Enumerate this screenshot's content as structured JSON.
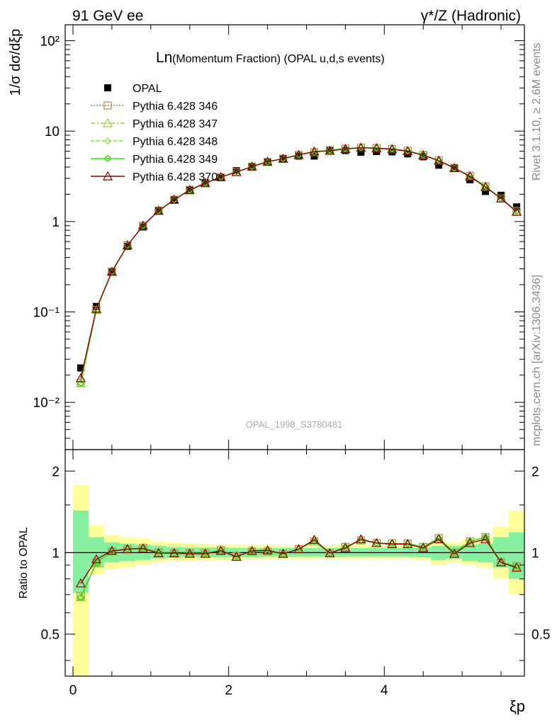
{
  "header": {
    "left": "91 GeV ee",
    "right": "γ*/Z (Hadronic)"
  },
  "side_texts": {
    "rivet": "Rivet 3.1.10, ≥ 2.6M events",
    "mcplots": "mcplots.cern.ch [arXiv:1306.3436]"
  },
  "colors": {
    "data": "#000000",
    "p346": "#b5844a",
    "p347": "#9acd32",
    "p348": "#7fe03a",
    "p349": "#33dd11",
    "p370": "#8b0000",
    "band_inner": "#87f0a0",
    "band_outer": "#ffff99"
  },
  "chart_data": [
    {
      "type": "line",
      "panel": "main",
      "title_main": "Ln",
      "title_rest": "(Momentum Fraction) (OPAL u,d,s events)",
      "watermark": "OPAL_1998_S3780481",
      "ylabel": "1/σ dσ/dξp",
      "yscale": "log",
      "ylim": [
        0.003,
        150
      ],
      "xlim": [
        -0.1,
        5.8
      ],
      "ytick_labels": [
        "10⁻²",
        "10⁻¹",
        "1",
        "10",
        "10²"
      ],
      "legend_position": "top-left",
      "x": [
        0.1,
        0.3,
        0.5,
        0.7,
        0.9,
        1.1,
        1.3,
        1.5,
        1.7,
        1.9,
        2.1,
        2.3,
        2.5,
        2.7,
        2.9,
        3.1,
        3.3,
        3.5,
        3.7,
        3.9,
        4.1,
        4.3,
        4.5,
        4.7,
        4.9,
        5.1,
        5.3,
        5.5,
        5.7
      ],
      "series": [
        {
          "name": "OPAL",
          "values": [
            0.024,
            0.115,
            0.275,
            0.53,
            0.87,
            1.32,
            1.75,
            2.25,
            2.68,
            3.05,
            3.65,
            4.0,
            4.5,
            5.0,
            5.3,
            5.3,
            6.05,
            6.1,
            5.85,
            5.95,
            5.9,
            5.6,
            5.2,
            4.2,
            3.95,
            2.9,
            2.15,
            1.95,
            1.45
          ]
        },
        {
          "name": "Pythia 6.428 346",
          "values": [
            0.0165,
            0.106,
            0.278,
            0.545,
            0.9,
            1.32,
            1.74,
            2.24,
            2.67,
            3.1,
            3.55,
            4.05,
            4.55,
            4.95,
            5.45,
            5.85,
            6.15,
            6.4,
            6.55,
            6.5,
            6.35,
            6.05,
            5.45,
            4.75,
            3.9,
            3.2,
            2.45,
            1.8,
            1.3
          ]
        },
        {
          "name": "Pythia 6.428 347",
          "values": [
            0.0163,
            0.105,
            0.277,
            0.544,
            0.9,
            1.32,
            1.74,
            2.24,
            2.67,
            3.1,
            3.55,
            4.05,
            4.55,
            4.95,
            5.45,
            5.85,
            6.15,
            6.4,
            6.55,
            6.5,
            6.35,
            6.05,
            5.45,
            4.75,
            3.9,
            3.2,
            2.45,
            1.8,
            1.3
          ]
        },
        {
          "name": "Pythia 6.428 348",
          "values": [
            0.0163,
            0.105,
            0.277,
            0.544,
            0.9,
            1.32,
            1.74,
            2.24,
            2.67,
            3.1,
            3.55,
            4.05,
            4.55,
            4.95,
            5.45,
            5.85,
            6.15,
            6.4,
            6.55,
            6.5,
            6.35,
            6.05,
            5.45,
            4.75,
            3.9,
            3.2,
            2.45,
            1.8,
            1.3
          ]
        },
        {
          "name": "Pythia 6.428 349",
          "values": [
            0.0163,
            0.105,
            0.277,
            0.544,
            0.9,
            1.32,
            1.74,
            2.24,
            2.67,
            3.1,
            3.55,
            4.05,
            4.55,
            4.95,
            5.45,
            5.85,
            6.15,
            6.4,
            6.55,
            6.5,
            6.35,
            6.05,
            5.45,
            4.75,
            3.9,
            3.2,
            2.45,
            1.8,
            1.3
          ]
        },
        {
          "name": "Pythia 6.428 370",
          "values": [
            0.0185,
            0.108,
            0.279,
            0.545,
            0.9,
            1.31,
            1.74,
            2.22,
            2.65,
            3.1,
            3.52,
            4.05,
            4.6,
            4.95,
            5.45,
            5.95,
            6.05,
            6.35,
            6.55,
            6.45,
            6.3,
            6.0,
            5.4,
            4.7,
            3.9,
            3.15,
            2.4,
            1.8,
            1.28
          ]
        }
      ]
    },
    {
      "type": "line",
      "panel": "ratio",
      "ylabel": "Ratio to OPAL",
      "xlabel": "ξp",
      "yscale": "log",
      "ylim": [
        0.35,
        2.4
      ],
      "xlim": [
        -0.1,
        5.8
      ],
      "xtick_labels": [
        "0",
        "2",
        "4"
      ],
      "ytick_labels": [
        "0.5",
        "1",
        "2"
      ],
      "x": [
        0.1,
        0.3,
        0.5,
        0.7,
        0.9,
        1.1,
        1.3,
        1.5,
        1.7,
        1.9,
        2.1,
        2.3,
        2.5,
        2.7,
        2.9,
        3.1,
        3.3,
        3.5,
        3.7,
        3.9,
        4.1,
        4.3,
        4.5,
        4.7,
        4.9,
        5.1,
        5.3,
        5.5,
        5.7
      ],
      "band_inner": [
        [
          0.71,
          1.43
        ],
        [
          0.88,
          1.14
        ],
        [
          0.92,
          1.09
        ],
        [
          0.93,
          1.08
        ],
        [
          0.94,
          1.07
        ],
        [
          0.95,
          1.06
        ],
        [
          0.955,
          1.05
        ],
        [
          0.96,
          1.045
        ],
        [
          0.96,
          1.045
        ],
        [
          0.96,
          1.045
        ],
        [
          0.96,
          1.04
        ],
        [
          0.96,
          1.04
        ],
        [
          0.965,
          1.04
        ],
        [
          0.965,
          1.04
        ],
        [
          0.965,
          1.04
        ],
        [
          0.965,
          1.04
        ],
        [
          0.965,
          1.04
        ],
        [
          0.965,
          1.04
        ],
        [
          0.965,
          1.04
        ],
        [
          0.965,
          1.04
        ],
        [
          0.965,
          1.04
        ],
        [
          0.965,
          1.04
        ],
        [
          0.96,
          1.045
        ],
        [
          0.94,
          1.06
        ],
        [
          0.95,
          1.06
        ],
        [
          0.93,
          1.07
        ],
        [
          0.92,
          1.08
        ],
        [
          0.88,
          1.14
        ],
        [
          0.8,
          1.19
        ]
      ],
      "band_outer": [
        [
          0.33,
          1.78
        ],
        [
          0.83,
          1.26
        ],
        [
          0.87,
          1.16
        ],
        [
          0.88,
          1.14
        ],
        [
          0.9,
          1.13
        ],
        [
          0.92,
          1.1
        ],
        [
          0.93,
          1.09
        ],
        [
          0.93,
          1.08
        ],
        [
          0.935,
          1.075
        ],
        [
          0.94,
          1.07
        ],
        [
          0.94,
          1.07
        ],
        [
          0.945,
          1.065
        ],
        [
          0.945,
          1.065
        ],
        [
          0.95,
          1.06
        ],
        [
          0.95,
          1.06
        ],
        [
          0.95,
          1.06
        ],
        [
          0.95,
          1.06
        ],
        [
          0.945,
          1.065
        ],
        [
          0.945,
          1.065
        ],
        [
          0.945,
          1.065
        ],
        [
          0.945,
          1.065
        ],
        [
          0.945,
          1.065
        ],
        [
          0.94,
          1.07
        ],
        [
          0.9,
          1.11
        ],
        [
          0.92,
          1.09
        ],
        [
          0.9,
          1.12
        ],
        [
          0.88,
          1.14
        ],
        [
          0.8,
          1.25
        ],
        [
          0.7,
          1.43
        ]
      ],
      "series": [
        {
          "name": "Pythia 6.428 346",
          "values": [
            0.69,
            0.92,
            1.01,
            1.03,
            1.04,
            1.0,
            0.995,
            0.995,
            0.995,
            1.02,
            0.97,
            1.01,
            1.01,
            0.99,
            1.03,
            1.1,
            0.995,
            1.05,
            1.11,
            1.085,
            1.08,
            1.08,
            1.05,
            1.13,
            1.0,
            1.1,
            1.14,
            0.92,
            0.89
          ]
        },
        {
          "name": "Pythia 6.428 347",
          "values": [
            0.685,
            0.915,
            1.01,
            1.03,
            1.04,
            1.0,
            0.995,
            0.995,
            0.995,
            1.02,
            0.97,
            1.01,
            1.01,
            0.99,
            1.03,
            1.1,
            0.995,
            1.05,
            1.11,
            1.085,
            1.08,
            1.08,
            1.05,
            1.13,
            1.0,
            1.1,
            1.14,
            0.92,
            0.89
          ]
        },
        {
          "name": "Pythia 6.428 348",
          "values": [
            0.685,
            0.915,
            1.01,
            1.03,
            1.04,
            1.0,
            0.995,
            0.995,
            0.995,
            1.02,
            0.97,
            1.01,
            1.01,
            0.99,
            1.03,
            1.1,
            0.995,
            1.05,
            1.11,
            1.085,
            1.08,
            1.08,
            1.05,
            1.13,
            1.0,
            1.1,
            1.14,
            0.92,
            0.89
          ]
        },
        {
          "name": "Pythia 6.428 349",
          "values": [
            0.685,
            0.915,
            1.01,
            1.03,
            1.04,
            1.0,
            0.995,
            0.995,
            0.995,
            1.02,
            0.97,
            1.01,
            1.01,
            0.99,
            1.03,
            1.1,
            0.995,
            1.05,
            1.11,
            1.085,
            1.08,
            1.08,
            1.05,
            1.13,
            1.0,
            1.1,
            1.14,
            0.92,
            0.89
          ]
        },
        {
          "name": "Pythia 6.428 370",
          "values": [
            0.77,
            0.945,
            1.015,
            1.03,
            1.035,
            0.995,
            0.995,
            0.99,
            0.99,
            1.015,
            0.965,
            1.015,
            1.02,
            0.99,
            1.03,
            1.115,
            0.995,
            1.04,
            1.12,
            1.085,
            1.075,
            1.075,
            1.04,
            1.12,
            0.99,
            1.085,
            1.12,
            0.92,
            0.88
          ]
        }
      ]
    }
  ]
}
